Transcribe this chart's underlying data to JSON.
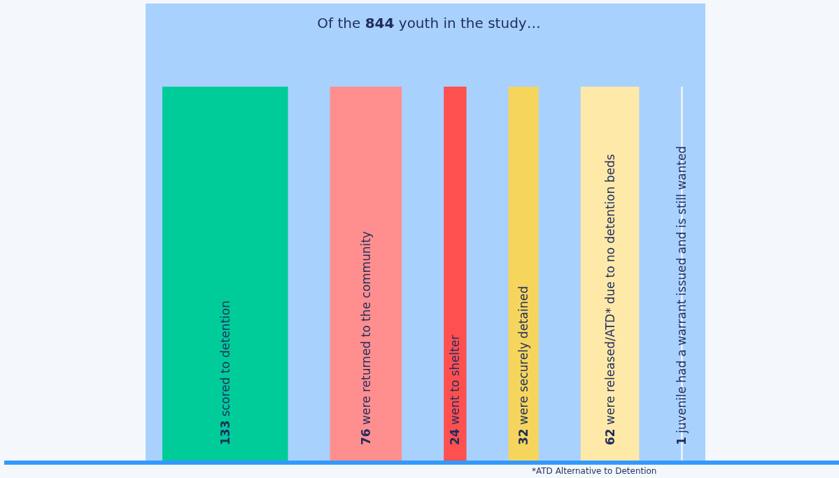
{
  "chart_data": {
    "type": "other",
    "title": "Of the 844 youth in the study…",
    "categories": [
      "scored to detention",
      "were returned to the community",
      "went to shelter",
      "were securely detained",
      "were released/ATD* due to no detention beds",
      "juvenile had a warrant issued and is still wanted"
    ],
    "values": [
      133,
      76,
      24,
      32,
      62,
      1
    ],
    "colors": [
      "#00cc99",
      "#ff8f8f",
      "#ff5050",
      "#f5d55c",
      "#ffe9a8",
      "#ffffff"
    ],
    "annotations": [
      "*ATD Alternative to Detention"
    ],
    "data_labels": true
  }
}
